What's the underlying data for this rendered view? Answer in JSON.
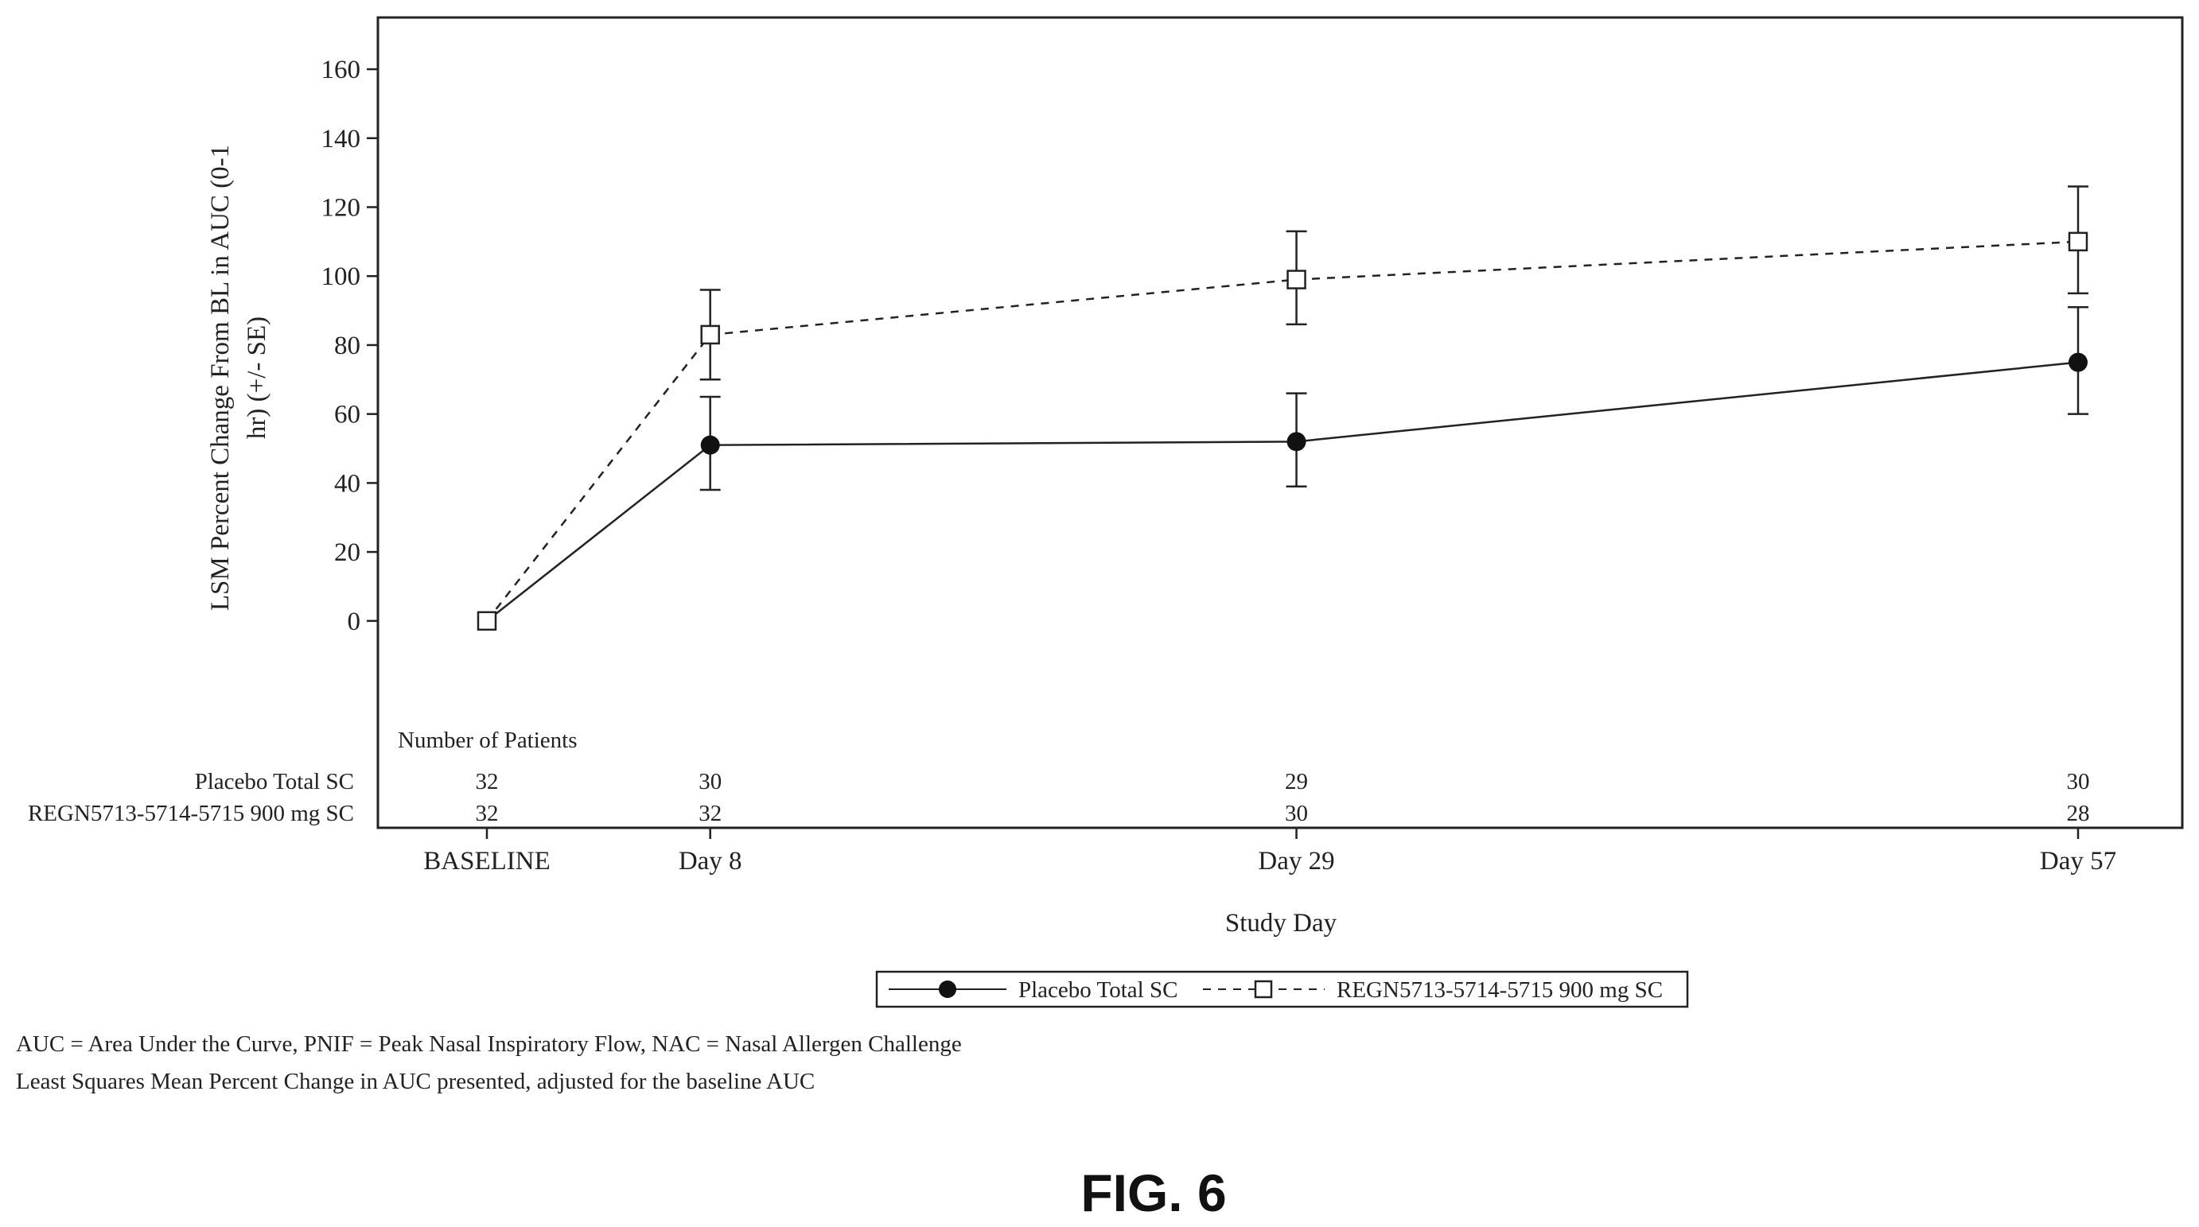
{
  "chart_data": {
    "type": "line",
    "xlabel": "Study Day",
    "ylabel_lines": [
      "LSM Percent Change From BL in AUC (0-1",
      "hr) (+/- SE)"
    ],
    "categories": [
      "BASELINE",
      "Day 8",
      "Day 29",
      "Day 57"
    ],
    "x_days": [
      0,
      8,
      29,
      57
    ],
    "ylim": [
      -60,
      175
    ],
    "yticks": [
      0,
      20,
      40,
      60,
      80,
      100,
      120,
      140,
      160
    ],
    "grid": false,
    "legend_position": "bottom",
    "series": [
      {
        "name": "Placebo Total SC",
        "style": "solid",
        "marker": "filled-circle",
        "values": [
          0,
          51,
          52,
          75
        ],
        "se_low": [
          0,
          38,
          39,
          60
        ],
        "se_high": [
          0,
          65,
          66,
          91
        ]
      },
      {
        "name": "REGN5713-5714-5715 900 mg SC",
        "style": "dashed",
        "marker": "open-square",
        "values": [
          0,
          83,
          99,
          110
        ],
        "se_low": [
          0,
          70,
          86,
          95
        ],
        "se_high": [
          0,
          96,
          113,
          126
        ]
      }
    ],
    "patients": {
      "title": "Number of Patients",
      "rows": [
        {
          "label": "Placebo Total SC",
          "counts": [
            "32",
            "30",
            "29",
            "30"
          ]
        },
        {
          "label": "REGN5713-5714-5715 900 mg SC",
          "counts": [
            "32",
            "32",
            "30",
            "28"
          ]
        }
      ]
    }
  },
  "footnotes": [
    "AUC = Area Under the Curve, PNIF = Peak Nasal Inspiratory Flow, NAC = Nasal Allergen Challenge",
    "Least Squares Mean Percent Change in AUC presented, adjusted for the baseline AUC"
  ],
  "figure_label": "FIG. 6"
}
